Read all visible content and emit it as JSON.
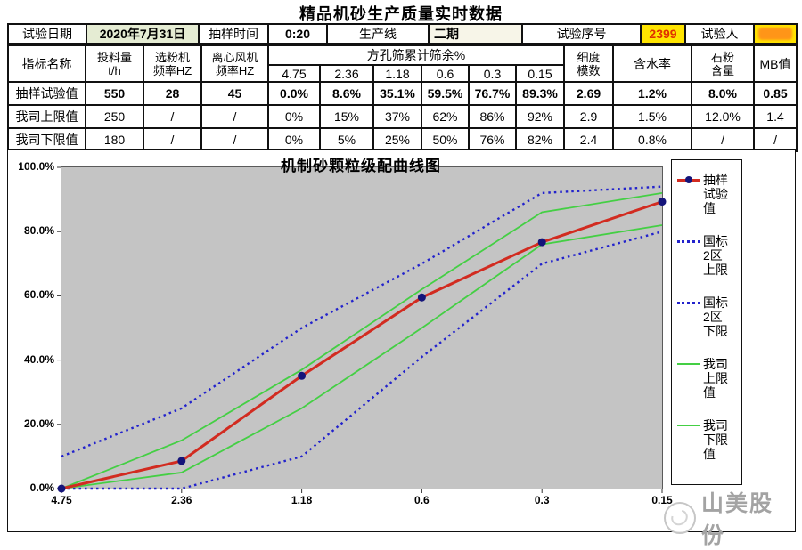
{
  "page": {
    "title": "精品机砂生产质量实时数据"
  },
  "info": {
    "date_label": "试验日期",
    "date_value": "2020年7月31日",
    "time_label": "抽样时间",
    "time_value": "0:20",
    "line_label": "生产线",
    "line_value": "二期",
    "serial_label": "试验序号",
    "serial_value": "2399",
    "tester_label": "试验人",
    "tester_value": ""
  },
  "table": {
    "headers": {
      "name": "指标名称",
      "feed": "投料量\nt/h",
      "classifier": "选粉机\n频率HZ",
      "fan": "离心风机\n频率HZ",
      "sieve_group": "方孔筛累计筛余%",
      "sieve_sizes": [
        "4.75",
        "2.36",
        "1.18",
        "0.6",
        "0.3",
        "0.15"
      ],
      "fineness": "细度\n模数",
      "moisture": "含水率",
      "stone_powder": "石粉\n含量",
      "mb": "MB值"
    },
    "rows": [
      {
        "label": "抽样试验值",
        "bold": true,
        "values": [
          "550",
          "28",
          "45",
          "0.0%",
          "8.6%",
          "35.1%",
          "59.5%",
          "76.7%",
          "89.3%",
          "2.69",
          "1.2%",
          "8.0%",
          "0.85"
        ]
      },
      {
        "label": "我司上限值",
        "bold": false,
        "values": [
          "250",
          "/",
          "/",
          "0%",
          "15%",
          "37%",
          "62%",
          "86%",
          "92%",
          "2.9",
          "1.5%",
          "12.0%",
          "1.4"
        ]
      },
      {
        "label": "我司下限值",
        "bold": false,
        "values": [
          "180",
          "/",
          "/",
          "0%",
          "5%",
          "25%",
          "50%",
          "76%",
          "82%",
          "2.4",
          "0.8%",
          "/",
          "/"
        ]
      }
    ]
  },
  "chart_data": {
    "type": "line",
    "title": "机制砂颗粒级配曲线图",
    "x_labels": [
      "4.75",
      "2.36",
      "1.18",
      "0.6",
      "0.3",
      "0.15"
    ],
    "y_ticks": [
      "100.0%",
      "80.0%",
      "60.0%",
      "40.0%",
      "20.0%",
      "0.0%"
    ],
    "ylim": [
      0,
      100
    ],
    "grid": false,
    "legend_position": "right",
    "plot_bg": "#c4c4c4",
    "series": [
      {
        "name": "抽样试验值",
        "style": "solid-marker",
        "color": "#d22b20",
        "marker_color": "#14147a",
        "values": [
          0,
          8.6,
          35.1,
          59.5,
          76.7,
          89.3
        ]
      },
      {
        "name": "国标2区上限",
        "style": "dotted",
        "color": "#2222cc",
        "values": [
          10,
          25,
          50,
          70,
          92,
          94
        ]
      },
      {
        "name": "国标2区下限",
        "style": "dotted",
        "color": "#2222cc",
        "values": [
          0,
          0,
          10,
          41,
          70,
          80
        ]
      },
      {
        "name": "我司上限值",
        "style": "solid",
        "color": "#44cf44",
        "values": [
          0,
          15,
          37,
          62,
          86,
          92
        ]
      },
      {
        "name": "我司下限值",
        "style": "solid",
        "color": "#44cf44",
        "values": [
          0,
          5,
          25,
          50,
          76,
          82
        ]
      }
    ]
  },
  "watermark": {
    "text": "山美股份"
  },
  "colors": {
    "highlight_yellow": "#ffe400",
    "serial_text_red": "#e03000",
    "date_cell_bg": "#e5ecd3",
    "redaction_orange": "#ff9518"
  }
}
